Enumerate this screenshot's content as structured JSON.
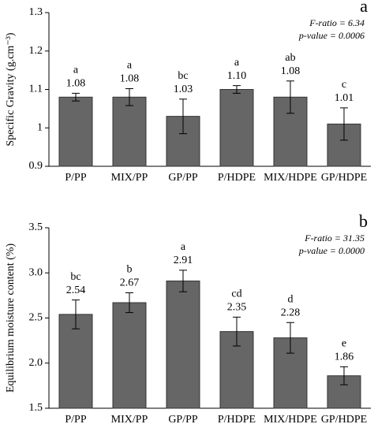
{
  "chart_data": [
    {
      "type": "bar",
      "panel_label": "a",
      "ylabel": "Specific Gravity (g.cm⁻³)",
      "annotations": [
        "F-ratio = 6.34",
        "p-value = 0.0006"
      ],
      "categories": [
        "P/PP",
        "MIX/PP",
        "GP/PP",
        "P/HDPE",
        "MIX/HDPE",
        "GP/HDPE"
      ],
      "values": [
        1.08,
        1.08,
        1.03,
        1.1,
        1.08,
        1.01
      ],
      "value_labels": [
        "1.08",
        "1.08",
        "1.03",
        "1.10",
        "1.08",
        "1.01"
      ],
      "errors": [
        0.01,
        0.022,
        0.045,
        0.01,
        0.042,
        0.042
      ],
      "letters": [
        "a",
        "a",
        "bc",
        "a",
        "ab",
        "c"
      ],
      "color": "#666666",
      "ylim": [
        0.9,
        1.3
      ],
      "yticks": [
        0.9,
        1,
        1.1,
        1.2,
        1.3
      ],
      "grid": false
    },
    {
      "type": "bar",
      "panel_label": "b",
      "ylabel": "Equilibrium moisture content (%)",
      "annotations": [
        "F-ratio = 31.35",
        "p-value = 0.0000"
      ],
      "categories": [
        "P/PP",
        "MIX/PP",
        "GP/PP",
        "P/HDPE",
        "MIX/HDPE",
        "GP/HDPE"
      ],
      "values": [
        2.54,
        2.67,
        2.91,
        2.35,
        2.28,
        1.86
      ],
      "value_labels": [
        "2.54",
        "2.67",
        "2.91",
        "2.35",
        "2.28",
        "1.86"
      ],
      "errors": [
        0.16,
        0.11,
        0.12,
        0.16,
        0.17,
        0.1
      ],
      "letters": [
        "bc",
        "b",
        "a",
        "cd",
        "d",
        "e"
      ],
      "color": "#666666",
      "ylim": [
        1.5,
        3.5
      ],
      "yticks": [
        1.5,
        {
          "value": 2,
          "label": "2.0"
        },
        2.5,
        {
          "value": 3,
          "label": "3.0"
        },
        3.5
      ],
      "grid": false
    }
  ]
}
